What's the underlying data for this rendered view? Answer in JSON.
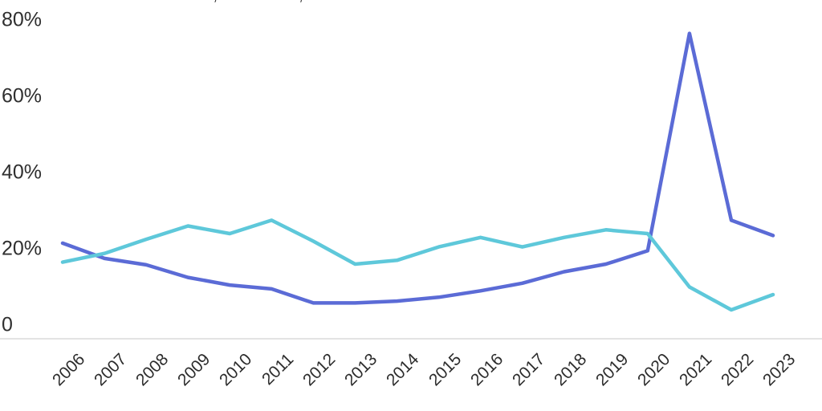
{
  "top_clipped_text": "...... .. ........ ........ .. ......,  ........ ....,  ..... ........ ....",
  "chart_data": {
    "type": "line",
    "title": "",
    "xlabel": "",
    "ylabel": "",
    "x_labels": [
      "2006",
      "2007",
      "2008",
      "2009",
      "2010",
      "2011",
      "2012",
      "2013",
      "2014",
      "2015",
      "2016",
      "2017",
      "2018",
      "2019",
      "2020",
      "2021",
      "2022",
      "2023"
    ],
    "series": [
      {
        "name": "blue-series",
        "color": "#5b6bd6",
        "values": [
          21.5,
          17.5,
          15.8,
          12.5,
          10.5,
          9.5,
          5.8,
          5.8,
          6.3,
          7.3,
          9,
          11,
          14,
          16,
          19.5,
          76.5,
          27.5,
          23.5
        ]
      },
      {
        "name": "cyan-series",
        "color": "#5ec8da",
        "values": [
          16.5,
          18.8,
          22.5,
          26,
          24,
          27.5,
          22,
          16,
          17,
          20.5,
          23,
          20.5,
          23,
          25,
          24,
          10,
          4,
          8
        ]
      }
    ],
    "ylim": [
      0,
      80
    ],
    "yticks": [
      {
        "label": "80%",
        "value": 80
      },
      {
        "label": "60%",
        "value": 60
      },
      {
        "label": "40%",
        "value": 40
      },
      {
        "label": "20%",
        "value": 20
      },
      {
        "label": "0",
        "value": 0
      }
    ],
    "grid": false,
    "legend_position": "none",
    "axis_line_color": "#e3e3e3",
    "tick_label_color": "#2c2c2c"
  }
}
